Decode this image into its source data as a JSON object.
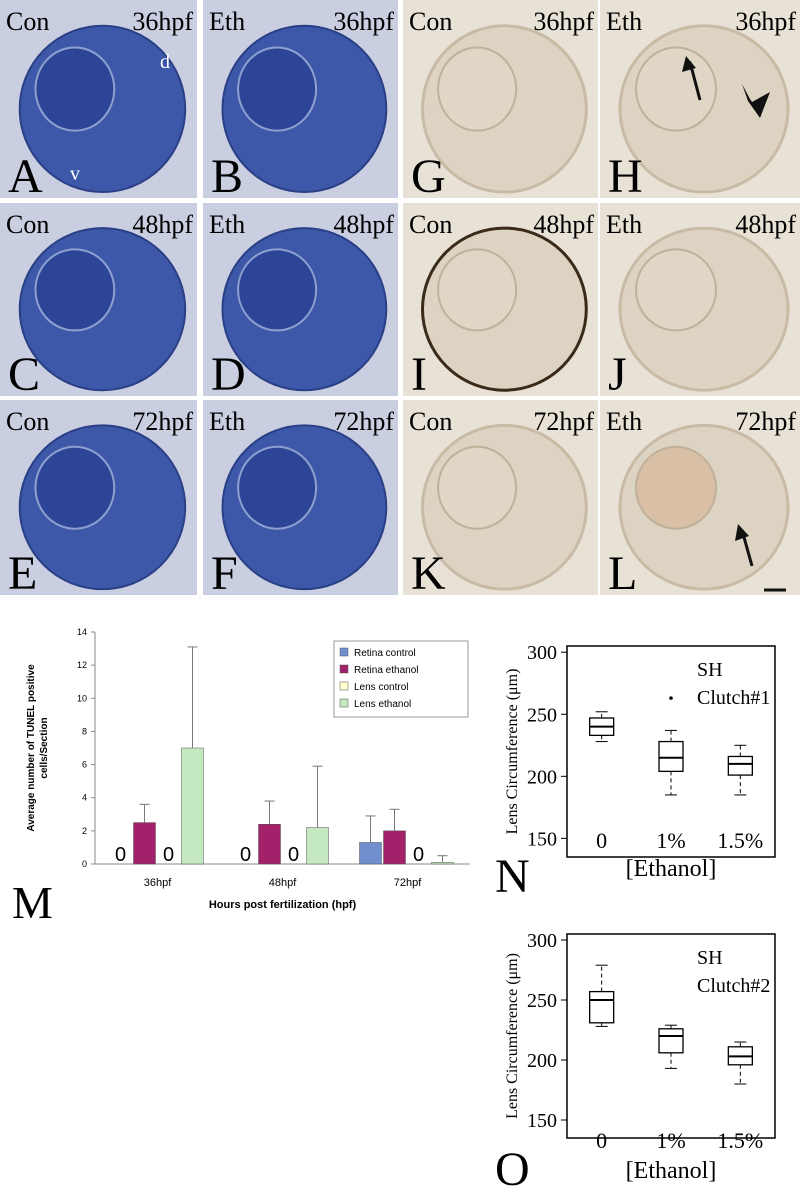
{
  "panels": [
    {
      "group": "Con",
      "time": "36hpf",
      "letter": "A",
      "marks": [
        "d",
        "v"
      ]
    },
    {
      "group": "Eth",
      "time": "36hpf",
      "letter": "B"
    },
    {
      "group": "Con",
      "time": "36hpf",
      "letter": "G"
    },
    {
      "group": "Eth",
      "time": "36hpf",
      "letter": "H"
    },
    {
      "group": "Con",
      "time": "48hpf",
      "letter": "C"
    },
    {
      "group": "Eth",
      "time": "48hpf",
      "letter": "D"
    },
    {
      "group": "Con",
      "time": "48hpf",
      "letter": "I"
    },
    {
      "group": "Eth",
      "time": "48hpf",
      "letter": "J"
    },
    {
      "group": "Con",
      "time": "72hpf",
      "letter": "E"
    },
    {
      "group": "Eth",
      "time": "72hpf",
      "letter": "F"
    },
    {
      "group": "Con",
      "time": "72hpf",
      "letter": "K"
    },
    {
      "group": "Eth",
      "time": "72hpf",
      "letter": "L"
    }
  ],
  "chart_data": [
    {
      "type": "bar",
      "letter": "M",
      "ylabel": [
        "Average number of TUNEL positive",
        "cells/Section"
      ],
      "xlabel": "Hours post fertilization (hpf)",
      "categories": [
        "36hpf",
        "48hpf",
        "72hpf"
      ],
      "ylim": [
        0,
        14
      ],
      "yticks": [
        0,
        2,
        4,
        6,
        8,
        10,
        12,
        14
      ],
      "legend": "top-right",
      "series": [
        {
          "name": "Retina control",
          "color": "#6f8fce",
          "values": [
            0,
            0,
            1.3
          ],
          "errors": [
            null,
            null,
            1.6
          ]
        },
        {
          "name": "Retina ethanol",
          "color": "#a3206b",
          "values": [
            2.5,
            2.4,
            2.0
          ],
          "errors": [
            1.1,
            1.4,
            1.3
          ]
        },
        {
          "name": "Lens control",
          "color": "#ffffcc",
          "values": [
            0,
            0,
            0
          ],
          "errors": [
            null,
            null,
            null
          ]
        },
        {
          "name": "Lens ethanol",
          "color": "#c4e8c0",
          "values": [
            7.0,
            2.2,
            0.1
          ],
          "errors": [
            6.1,
            3.7,
            0.4
          ]
        }
      ]
    },
    {
      "type": "box",
      "letter": "N",
      "annotations": [
        "SH",
        "Clutch#1"
      ],
      "ylabel": "Lens Circumference (μm)",
      "xlabel": "[Ethanol]",
      "categories": [
        "0",
        "1%",
        "1.5%"
      ],
      "ylim": [
        135,
        305
      ],
      "yticks": [
        150,
        200,
        250,
        300
      ],
      "min": [
        228,
        185,
        185
      ],
      "q1": [
        233,
        204,
        201
      ],
      "median": [
        240,
        215,
        210
      ],
      "q3": [
        247,
        228,
        216
      ],
      "max": [
        252,
        237,
        225
      ],
      "outliers": [
        null,
        263,
        null
      ]
    },
    {
      "type": "box",
      "letter": "O",
      "annotations": [
        "SH",
        "Clutch#2"
      ],
      "ylabel": "Lens Circumference (μm)",
      "xlabel": "[Ethanol]",
      "categories": [
        "0",
        "1%",
        "1.5%"
      ],
      "ylim": [
        135,
        305
      ],
      "yticks": [
        150,
        200,
        250,
        300
      ],
      "min": [
        228,
        193,
        180
      ],
      "q1": [
        231,
        206,
        196
      ],
      "median": [
        250,
        220,
        203
      ],
      "q3": [
        257,
        226,
        211
      ],
      "max": [
        279,
        229,
        215
      ],
      "outliers": [
        null,
        null,
        null
      ]
    }
  ]
}
